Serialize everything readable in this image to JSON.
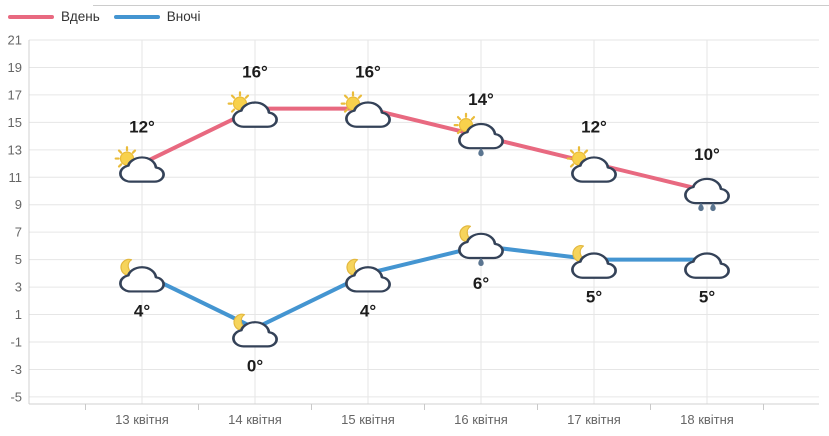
{
  "legend": {
    "items": [
      {
        "label": "Вдень",
        "color": "#e86980"
      },
      {
        "label": "Вночі",
        "color": "#4495d1"
      }
    ]
  },
  "chart_data": {
    "type": "line",
    "categories": [
      "13 квітня",
      "14 квітня",
      "15 квітня",
      "16 квітня",
      "17 квітня",
      "18 квітня"
    ],
    "series": [
      {
        "name": "Вдень",
        "color": "#e86980",
        "values": [
          12,
          16,
          16,
          14,
          12,
          10
        ],
        "point_labels": [
          "12°",
          "16°",
          "16°",
          "14°",
          "12°",
          "10°"
        ],
        "icons": [
          "sun-cloud",
          "sun-cloud",
          "sun-cloud",
          "sun-cloud-rain1",
          "sun-cloud",
          "cloud-rain2"
        ],
        "label_position": "above"
      },
      {
        "name": "Вночі",
        "color": "#4495d1",
        "values": [
          4,
          0,
          4,
          6,
          5,
          5
        ],
        "point_labels": [
          "4°",
          "0°",
          "4°",
          "6°",
          "5°",
          "5°"
        ],
        "icons": [
          "moon-cloud",
          "moon-cloud",
          "moon-cloud",
          "moon-cloud-rain1",
          "moon-cloud",
          "cloud"
        ],
        "label_position": "below"
      }
    ],
    "ylim": [
      -5,
      21
    ],
    "yticks": [
      21,
      19,
      17,
      15,
      13,
      11,
      9,
      7,
      5,
      3,
      1,
      -1,
      -3,
      -5
    ],
    "grid": true,
    "legend_position": "top-left",
    "colors": {
      "grid": "#e6e6e6",
      "axis_line": "#d0d0d0",
      "tick": "#c9c9c9",
      "axis_text": "#666666",
      "point_label_text": "#1c1c1c",
      "cloud_outline": "#344258",
      "cloud_fill": "#ffffff",
      "sun_fill": "#f8d14c",
      "sun_rays": "#eabc3b",
      "moon_fill": "#f6d45c",
      "moon_outline": "#e3b83f",
      "raindrop": "#5b7590",
      "background": "#ffffff"
    }
  }
}
